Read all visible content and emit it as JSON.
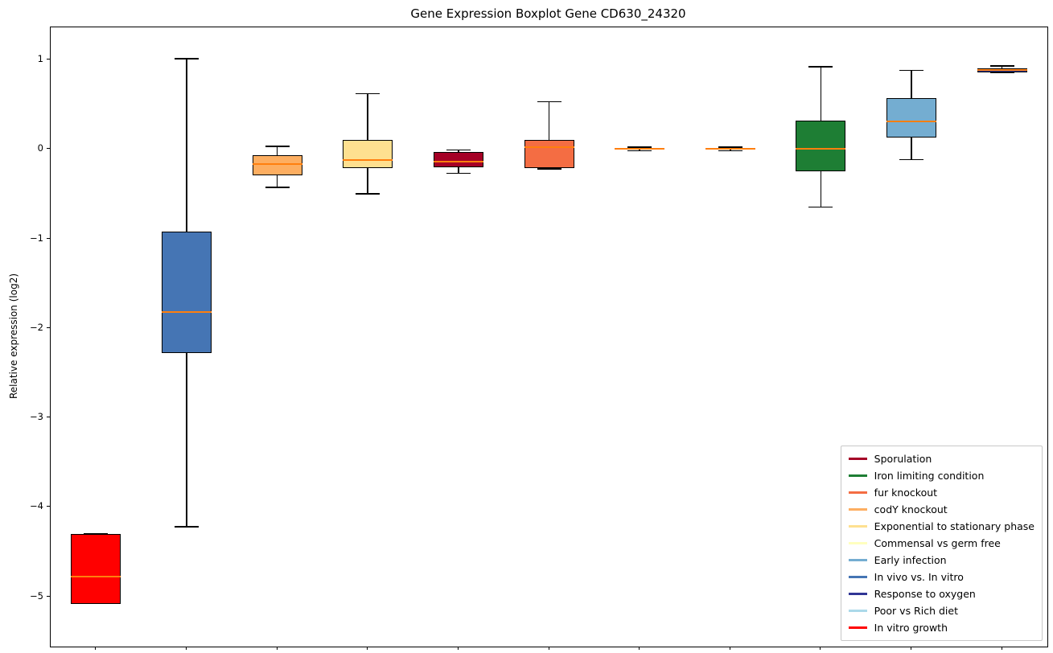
{
  "title": "Gene Expression Boxplot Gene CD630_24320",
  "ylabel": "Relative expression (log2)",
  "chart_data": {
    "type": "boxplot",
    "title": "Gene Expression Boxplot Gene CD630_24320",
    "xlabel": "",
    "ylabel": "Relative expression (log2)",
    "ylim": [
      -5.56,
      1.36
    ],
    "yticks": [
      1,
      0,
      -1,
      -2,
      -3,
      -4,
      -5
    ],
    "grid": false,
    "legend_position": "lower right",
    "median_color": "#ff7f0e",
    "boxes": [
      {
        "label": "In vitro growth",
        "color": "#ff0000",
        "whisker_low": -5.08,
        "q1": -5.08,
        "median": -4.78,
        "q3": -4.3,
        "whisker_high": -4.3
      },
      {
        "label": "In vivo vs. In vitro",
        "color": "#4575b4",
        "whisker_low": -4.22,
        "q1": -2.28,
        "median": -1.82,
        "q3": -0.92,
        "whisker_high": 1.01
      },
      {
        "label": "codY knockout",
        "color": "#fdae61",
        "whisker_low": -0.43,
        "q1": -0.29,
        "median": -0.17,
        "q3": -0.07,
        "whisker_high": 0.03
      },
      {
        "label": "Exponential to stationary phase",
        "color": "#fee090",
        "whisker_low": -0.5,
        "q1": -0.21,
        "median": -0.12,
        "q3": 0.1,
        "whisker_high": 0.62
      },
      {
        "label": "Sporulation",
        "color": "#a50026",
        "whisker_low": -0.27,
        "q1": -0.2,
        "median": -0.14,
        "q3": -0.03,
        "whisker_high": -0.01
      },
      {
        "label": "fur knockout",
        "color": "#f46d43",
        "whisker_low": -0.22,
        "q1": -0.21,
        "median": 0.02,
        "q3": 0.1,
        "whisker_high": 0.53
      },
      {
        "label": "Commensal vs germ free",
        "color": "#ffffbf",
        "whisker_low": -0.02,
        "q1": -0.01,
        "median": 0.0,
        "q3": 0.01,
        "whisker_high": 0.02
      },
      {
        "label": "Poor vs Rich diet",
        "color": "#abd9e9",
        "whisker_low": -0.02,
        "q1": -0.01,
        "median": 0.0,
        "q3": 0.01,
        "whisker_high": 0.02
      },
      {
        "label": "Iron limiting condition",
        "color": "#1e7e34",
        "whisker_low": -0.65,
        "q1": -0.25,
        "median": 0.0,
        "q3": 0.32,
        "whisker_high": 0.92
      },
      {
        "label": "Early infection",
        "color": "#74add1",
        "whisker_low": -0.12,
        "q1": 0.13,
        "median": 0.31,
        "q3": 0.57,
        "whisker_high": 0.88
      },
      {
        "label": "Response to oxygen",
        "color": "#313695",
        "whisker_low": 0.85,
        "q1": 0.86,
        "median": 0.88,
        "q3": 0.9,
        "whisker_high": 0.93
      }
    ],
    "legend": [
      {
        "label": "Sporulation",
        "color": "#a50026"
      },
      {
        "label": "Iron limiting condition",
        "color": "#1e7e34"
      },
      {
        "label": "fur knockout",
        "color": "#f46d43"
      },
      {
        "label": "codY knockout",
        "color": "#fdae61"
      },
      {
        "label": "Exponential to stationary phase",
        "color": "#fee090"
      },
      {
        "label": "Commensal vs germ free",
        "color": "#ffffbf"
      },
      {
        "label": "Early infection",
        "color": "#74add1"
      },
      {
        "label": "In vivo vs. In vitro",
        "color": "#4575b4"
      },
      {
        "label": "Response to oxygen",
        "color": "#313695"
      },
      {
        "label": "Poor vs Rich diet",
        "color": "#abd9e9"
      },
      {
        "label": "In vitro growth",
        "color": "#ff0000"
      }
    ]
  }
}
